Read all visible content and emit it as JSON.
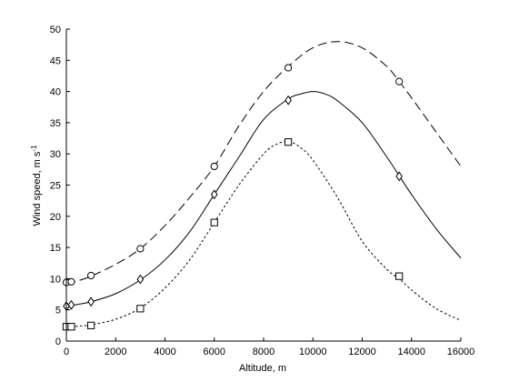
{
  "chart_data": {
    "type": "line",
    "title": "",
    "xlabel": "Altitude, m",
    "ylabel": "Wind speed, m s",
    "ylabel_superscript": "-1",
    "xlim": [
      0,
      16000
    ],
    "ylim": [
      0,
      50
    ],
    "x_ticks": [
      0,
      2000,
      4000,
      6000,
      8000,
      10000,
      12000,
      14000,
      16000
    ],
    "y_ticks": [
      0,
      5,
      10,
      15,
      20,
      25,
      30,
      35,
      40,
      45,
      50
    ],
    "grid": false,
    "legend": "none",
    "series": [
      {
        "style": "dashed",
        "color": "#000000",
        "curve": {
          "x": [
            0,
            200,
            500,
            1000,
            2000,
            3000,
            4000,
            5000,
            6000,
            7000,
            8000,
            9000,
            10000,
            11000,
            12000,
            13000,
            13500,
            14000,
            15000,
            16000
          ],
          "y": [
            9.3,
            9.4,
            9.7,
            10.4,
            12.3,
            14.8,
            18.5,
            23.0,
            28.0,
            34.5,
            40.0,
            44.0,
            47.0,
            48.0,
            47.0,
            44.0,
            41.6,
            39.0,
            33.5,
            28.0
          ]
        },
        "markers": {
          "shape": "circle",
          "x": [
            0,
            200,
            1000,
            3000,
            6000,
            9000,
            13500
          ],
          "y": [
            9.4,
            9.5,
            10.5,
            14.8,
            28.0,
            43.8,
            41.6
          ]
        }
      },
      {
        "style": "solid",
        "color": "#000000",
        "curve": {
          "x": [
            0,
            200,
            500,
            1000,
            2000,
            3000,
            4000,
            5000,
            6000,
            7000,
            8000,
            9000,
            9500,
            10000,
            10500,
            11000,
            12000,
            13000,
            13500,
            14000,
            15000,
            16000
          ],
          "y": [
            5.6,
            5.7,
            5.9,
            6.3,
            7.6,
            9.8,
            13.0,
            17.5,
            23.5,
            29.5,
            35.5,
            38.8,
            39.6,
            40.0,
            39.6,
            38.5,
            35.0,
            29.5,
            26.5,
            23.5,
            18.0,
            13.3
          ]
        },
        "markers": {
          "shape": "diamond",
          "x": [
            0,
            200,
            1000,
            3000,
            6000,
            9000,
            13500
          ],
          "y": [
            5.6,
            5.8,
            6.3,
            9.9,
            23.5,
            38.6,
            26.4
          ]
        }
      },
      {
        "style": "dotted",
        "color": "#000000",
        "curve": {
          "x": [
            0,
            200,
            500,
            1000,
            2000,
            3000,
            4000,
            5000,
            6000,
            7000,
            8000,
            8500,
            9000,
            9500,
            10000,
            11000,
            12000,
            13000,
            13500,
            14000,
            15000,
            16000
          ],
          "y": [
            2.3,
            2.3,
            2.4,
            2.6,
            3.5,
            5.3,
            8.5,
            13.0,
            19.0,
            25.0,
            30.0,
            31.5,
            32.0,
            31.0,
            29.0,
            23.0,
            16.0,
            11.5,
            10.0,
            8.2,
            5.2,
            3.3
          ]
        },
        "markers": {
          "shape": "square",
          "x": [
            0,
            200,
            1000,
            3000,
            6000,
            9000,
            13500
          ],
          "y": [
            2.3,
            2.3,
            2.5,
            5.2,
            19.0,
            31.9,
            10.4
          ]
        }
      }
    ]
  }
}
